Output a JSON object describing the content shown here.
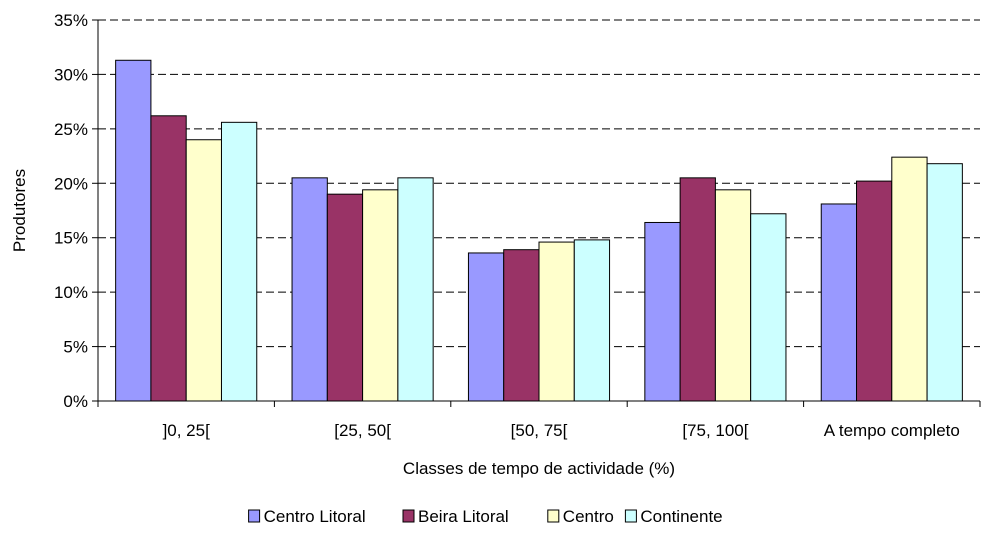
{
  "chart_data": {
    "type": "bar",
    "xlabel": "Classes de tempo de actividade (%)",
    "ylabel": "Produtores",
    "ylim": [
      0,
      35
    ],
    "yticks": [
      "0%",
      "5%",
      "10%",
      "15%",
      "20%",
      "25%",
      "30%",
      "35%"
    ],
    "grid": true,
    "legend_position": "bottom",
    "categories": [
      "]0, 25[",
      "[25, 50[",
      "[50, 75[",
      "[75, 100[",
      "A tempo completo"
    ],
    "series": [
      {
        "name": "Centro Litoral",
        "color": "#9999ff",
        "values": [
          31.3,
          20.5,
          13.6,
          16.4,
          18.1
        ]
      },
      {
        "name": "Beira Litoral",
        "color": "#993366",
        "values": [
          26.2,
          19.0,
          13.9,
          20.5,
          20.2
        ]
      },
      {
        "name": "Centro",
        "color": "#ffffcc",
        "values": [
          24.0,
          19.4,
          14.6,
          19.4,
          22.4
        ]
      },
      {
        "name": "Continente",
        "color": "#ccffff",
        "values": [
          25.6,
          20.5,
          14.8,
          17.2,
          21.8
        ]
      }
    ]
  }
}
